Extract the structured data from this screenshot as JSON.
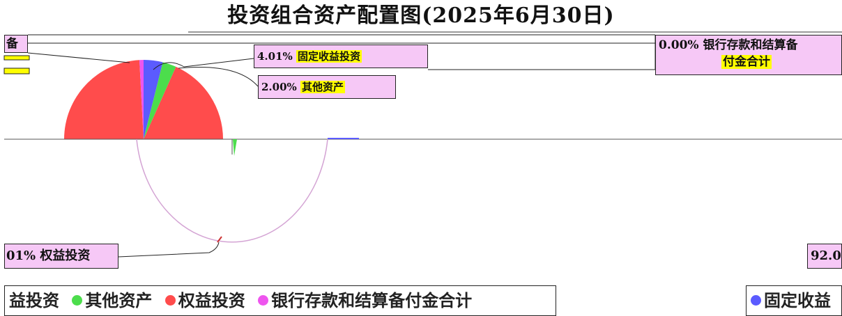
{
  "chart_data": {
    "type": "pie",
    "title": "投资组合资产配置图(2025年6月30日)",
    "slices": [
      {
        "label": "权益投资",
        "percent": 4.01,
        "color": "#ff4c4c"
      },
      {
        "label": "固定收益投资",
        "percent": 92.0,
        "color": "#5b5bff"
      },
      {
        "label": "其他资产",
        "percent": 2.0,
        "color": "#4cdd4c"
      },
      {
        "label": "银行存款和结算备付金合计",
        "percent": 0.0,
        "color": "#ee55ee"
      }
    ],
    "callouts": {
      "left_top": "备",
      "mid_top_pct": "4.01%",
      "mid_top_label": "固定收益投资",
      "mid_second_pct": "2.00%",
      "mid_second_label": "其他资产",
      "right_top_pct": "0.00%",
      "right_top_label": "银行存款和结算备",
      "right_top_label2": "付金合计",
      "bottom_left": "01% 权益投资",
      "bottom_right": "92.0"
    },
    "legend_left": [
      "益投资",
      "其他资产",
      "权益投资",
      "银行存款和结算备付金合计"
    ],
    "legend_right": [
      "固定收益"
    ],
    "legend_position": "bottom"
  }
}
